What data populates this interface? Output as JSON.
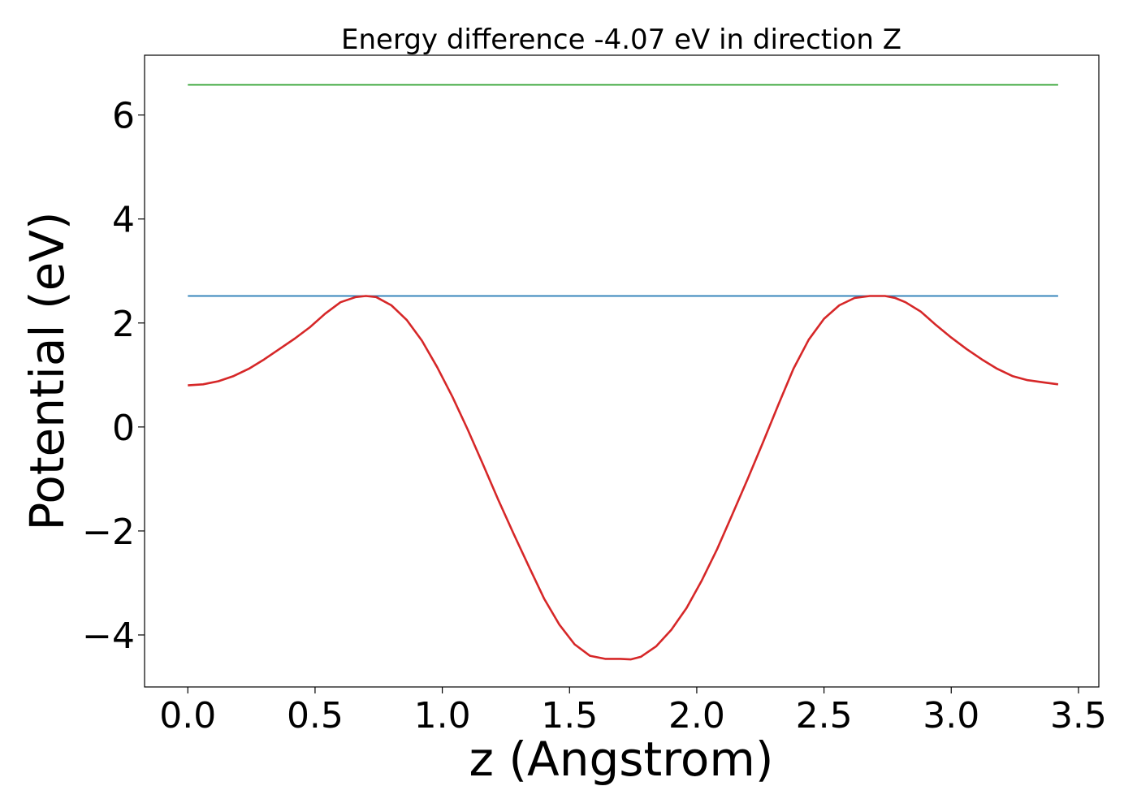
{
  "chart_data": {
    "type": "line",
    "title": "Energy difference -4.07 eV in direction Z",
    "xlabel": "z (Angstrom)",
    "ylabel": "Potential (eV)",
    "xlim": [
      -0.17,
      3.58
    ],
    "ylim": [
      -5.0,
      7.15
    ],
    "xticks": [
      0.0,
      0.5,
      1.0,
      1.5,
      2.0,
      2.5,
      3.0,
      3.5
    ],
    "xtick_labels": [
      "0.0",
      "0.5",
      "1.0",
      "1.5",
      "2.0",
      "2.5",
      "3.0",
      "3.5"
    ],
    "yticks": [
      -4,
      -2,
      0,
      2,
      4,
      6
    ],
    "ytick_labels": [
      "−4",
      "−2",
      "0",
      "2",
      "4",
      "6"
    ],
    "grid": false,
    "series": [
      {
        "color": "#2ca02c",
        "x": [
          0.0,
          3.42
        ],
        "y": [
          6.58,
          6.58
        ]
      },
      {
        "color": "#1f77b4",
        "x": [
          0.0,
          3.42
        ],
        "y": [
          2.52,
          2.52
        ]
      },
      {
        "color": "#d62728",
        "x": [
          0.0,
          0.06,
          0.12,
          0.18,
          0.24,
          0.3,
          0.36,
          0.42,
          0.48,
          0.54,
          0.6,
          0.66,
          0.7,
          0.74,
          0.8,
          0.86,
          0.92,
          0.98,
          1.04,
          1.1,
          1.16,
          1.22,
          1.28,
          1.34,
          1.4,
          1.46,
          1.52,
          1.58,
          1.64,
          1.7,
          1.74,
          1.78,
          1.84,
          1.9,
          1.96,
          2.02,
          2.08,
          2.14,
          2.2,
          2.26,
          2.32,
          2.38,
          2.44,
          2.5,
          2.56,
          2.62,
          2.68,
          2.74,
          2.78,
          2.82,
          2.88,
          2.94,
          3.0,
          3.06,
          3.12,
          3.18,
          3.24,
          3.3,
          3.36,
          3.42
        ],
        "y": [
          0.8,
          0.82,
          0.88,
          0.98,
          1.12,
          1.3,
          1.5,
          1.7,
          1.92,
          2.18,
          2.4,
          2.5,
          2.52,
          2.5,
          2.34,
          2.06,
          1.66,
          1.15,
          0.58,
          -0.05,
          -0.72,
          -1.4,
          -2.05,
          -2.68,
          -3.3,
          -3.8,
          -4.18,
          -4.4,
          -4.46,
          -4.46,
          -4.47,
          -4.42,
          -4.22,
          -3.9,
          -3.48,
          -2.95,
          -2.35,
          -1.68,
          -1.0,
          -0.3,
          0.42,
          1.12,
          1.68,
          2.08,
          2.34,
          2.48,
          2.52,
          2.52,
          2.48,
          2.4,
          2.22,
          1.96,
          1.72,
          1.5,
          1.3,
          1.12,
          0.98,
          0.9,
          0.86,
          0.82
        ]
      }
    ]
  }
}
